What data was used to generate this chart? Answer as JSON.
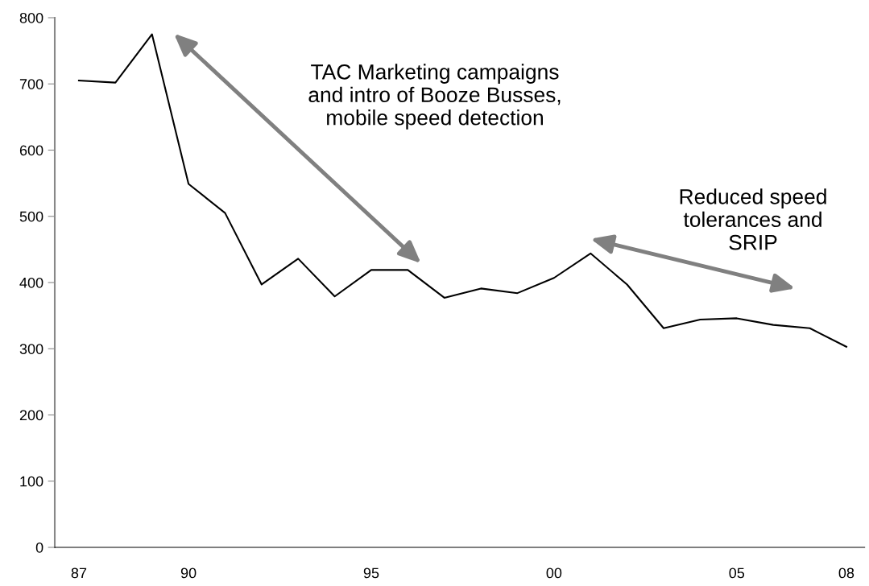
{
  "chart_data": {
    "type": "line",
    "categories": [
      "87",
      null,
      null,
      "90",
      null,
      null,
      null,
      null,
      "95",
      null,
      null,
      null,
      null,
      "00",
      null,
      null,
      null,
      null,
      "05",
      null,
      null,
      "08"
    ],
    "series": [
      {
        "color": "#000000",
        "values": [
          705,
          702,
          775,
          549,
          505,
          397,
          436,
          379,
          419,
          419,
          377,
          391,
          384,
          407,
          444,
          397,
          331,
          344,
          346,
          336,
          331,
          303
        ]
      }
    ],
    "ylim": [
      0,
      800
    ],
    "yticks": [
      0,
      100,
      200,
      300,
      400,
      500,
      600,
      700,
      800
    ],
    "grid": false,
    "legend": false,
    "marker": "none",
    "line_style": "solid",
    "annotations": [
      "TAC Marketing campaigns\nand intro of Booze Busses,\nmobile speed detection",
      "Reduced speed\ntolerances and\nSRIP"
    ]
  }
}
